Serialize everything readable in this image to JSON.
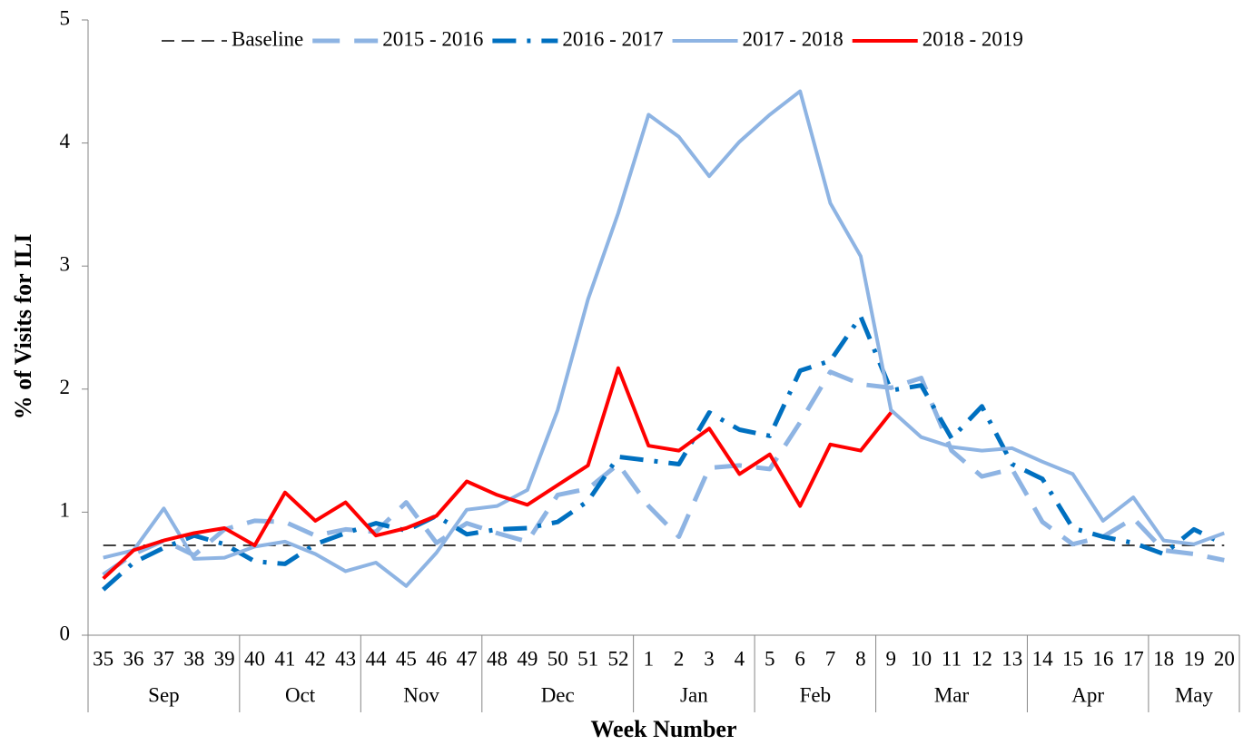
{
  "chart_data": {
    "type": "line",
    "y_label": "% of Visits for ILI",
    "x_label": "Week Number",
    "categories": [
      "35",
      "36",
      "37",
      "38",
      "39",
      "40",
      "41",
      "42",
      "43",
      "44",
      "45",
      "46",
      "47",
      "48",
      "49",
      "50",
      "51",
      "52",
      "1",
      "2",
      "3",
      "4",
      "5",
      "6",
      "7",
      "8",
      "9",
      "10",
      "11",
      "12",
      "13",
      "14",
      "15",
      "16",
      "17",
      "18",
      "19",
      "20"
    ],
    "month_groups": [
      {
        "label": "Sep",
        "weeks": 5
      },
      {
        "label": "Oct",
        "weeks": 4
      },
      {
        "label": "Nov",
        "weeks": 4
      },
      {
        "label": "Dec",
        "weeks": 5
      },
      {
        "label": "Jan",
        "weeks": 4
      },
      {
        "label": "Feb",
        "weeks": 4
      },
      {
        "label": "Mar",
        "weeks": 5
      },
      {
        "label": "Apr",
        "weeks": 4
      },
      {
        "label": "May",
        "weeks": 3
      }
    ],
    "ylim": [
      0,
      5
    ],
    "yticks": [
      0,
      1,
      2,
      3,
      4,
      5
    ],
    "grid": false,
    "legend": "top",
    "series": [
      {
        "name": "Baseline",
        "color": "#404040",
        "style": "dashed-thin",
        "values": [
          0.73,
          0.73,
          0.73,
          0.73,
          0.73,
          0.73,
          0.73,
          0.73,
          0.73,
          0.73,
          0.73,
          0.73,
          0.73,
          0.73,
          0.73,
          0.73,
          0.73,
          0.73,
          0.73,
          0.73,
          0.73,
          0.73,
          0.73,
          0.73,
          0.73,
          0.73,
          0.73,
          0.73,
          0.73,
          0.73,
          0.73,
          0.73,
          0.73,
          0.73,
          0.73,
          0.73,
          0.73,
          0.73
        ]
      },
      {
        "name": "2015 - 2016",
        "color": "#8eb4e3",
        "style": "dashed",
        "values": [
          0.49,
          0.66,
          0.77,
          0.65,
          0.86,
          0.93,
          0.92,
          0.81,
          0.86,
          0.84,
          1.08,
          0.75,
          0.91,
          0.83,
          0.76,
          1.14,
          1.19,
          1.39,
          1.05,
          0.8,
          1.36,
          1.38,
          1.35,
          1.73,
          2.14,
          2.04,
          2.01,
          2.09,
          1.5,
          1.29,
          1.35,
          0.92,
          0.74,
          0.8,
          0.95,
          0.69,
          0.66,
          0.61
        ]
      },
      {
        "name": "2016 - 2017",
        "color": "#0070c0",
        "style": "dash-dot",
        "values": [
          0.37,
          0.59,
          0.71,
          0.81,
          0.74,
          0.6,
          0.58,
          0.74,
          0.83,
          0.91,
          0.85,
          0.97,
          0.82,
          0.86,
          0.87,
          0.92,
          1.09,
          1.45,
          1.42,
          1.39,
          1.81,
          1.67,
          1.62,
          2.15,
          2.23,
          2.59,
          1.99,
          2.03,
          1.6,
          1.86,
          1.39,
          1.27,
          0.87,
          0.8,
          0.75,
          0.66,
          0.86,
          0.74
        ]
      },
      {
        "name": "2017 - 2018",
        "color": "#8eb4e3",
        "style": "solid",
        "values": [
          0.63,
          0.69,
          1.03,
          0.62,
          0.63,
          0.72,
          0.76,
          0.66,
          0.52,
          0.59,
          0.4,
          0.67,
          1.02,
          1.05,
          1.18,
          1.83,
          2.73,
          3.43,
          4.23,
          4.05,
          3.73,
          4.01,
          4.23,
          4.42,
          3.51,
          3.08,
          1.83,
          1.61,
          1.53,
          1.5,
          1.52,
          1.41,
          1.31,
          0.93,
          1.12,
          0.77,
          0.74,
          0.83
        ]
      },
      {
        "name": "2018 - 2019",
        "color": "#ff0000",
        "style": "solid",
        "values": [
          0.46,
          0.69,
          0.77,
          0.83,
          0.87,
          0.73,
          1.16,
          0.93,
          1.08,
          0.81,
          0.87,
          0.97,
          1.25,
          1.14,
          1.06,
          1.22,
          1.38,
          2.17,
          1.54,
          1.5,
          1.68,
          1.31,
          1.47,
          1.05,
          1.55,
          1.5,
          1.81,
          null,
          null,
          null,
          null,
          null,
          null,
          null,
          null,
          null,
          null,
          null
        ]
      }
    ]
  }
}
